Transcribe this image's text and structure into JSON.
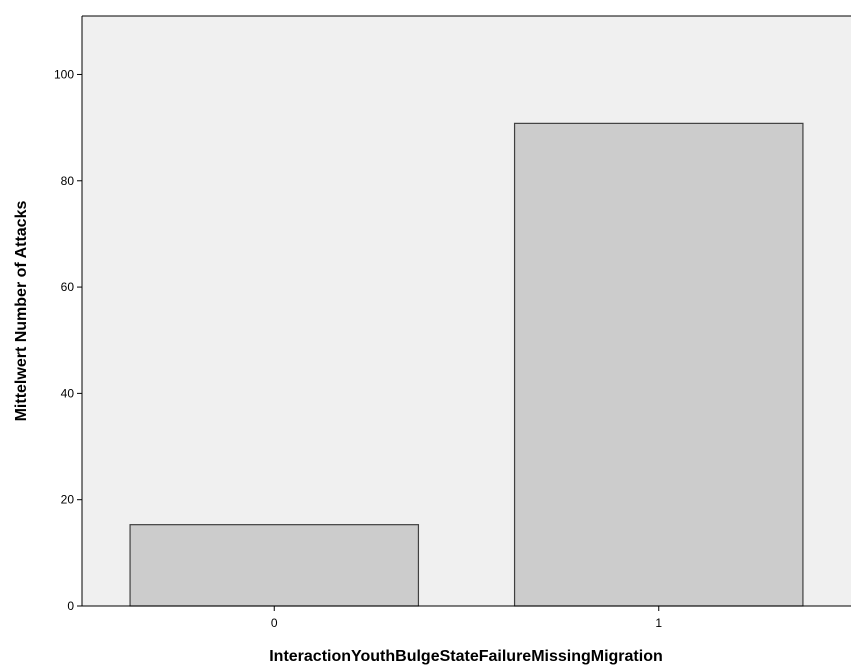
{
  "chart_data": {
    "type": "bar",
    "title": "",
    "xlabel": "InteractionYouthBulgeStateFailureMissingMigration",
    "ylabel": "Mittelwert Number of Attacks",
    "categories": [
      "0",
      "1"
    ],
    "values": [
      15.3,
      90.8
    ],
    "ylim": [
      0,
      111
    ],
    "yticks": [
      0,
      20,
      40,
      60,
      80,
      100
    ],
    "grid": false,
    "colors": {
      "bar_fill": "#cccccc",
      "bar_stroke": "#404040",
      "plot_background": "#f0f0f0",
      "axis": "#000000"
    }
  }
}
